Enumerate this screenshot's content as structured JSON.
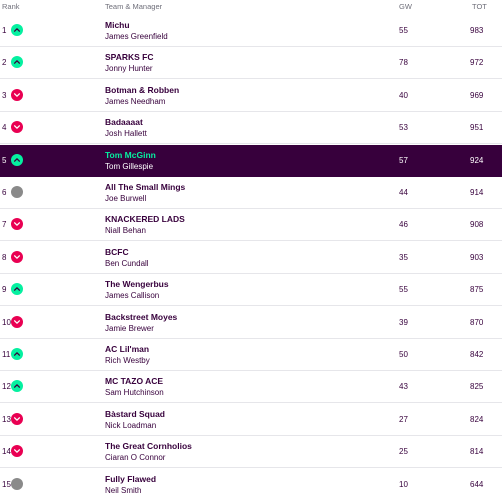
{
  "header": {
    "rank": "Rank",
    "team_manager": "Team & Manager",
    "gw": "GW",
    "tot": "TOT"
  },
  "colors": {
    "highlight_bg": "#37003c",
    "up": "#05f0a0",
    "down": "#e90052",
    "same": "#8a8a8a"
  },
  "rows": [
    {
      "rank": "1",
      "movement": "up",
      "team": "Michu",
      "manager": "James Greenfield",
      "gw": "55",
      "tot": "983"
    },
    {
      "rank": "2",
      "movement": "up",
      "team": "SPARKS FC",
      "manager": "Jonny Hunter",
      "gw": "78",
      "tot": "972"
    },
    {
      "rank": "3",
      "movement": "down",
      "team": "Botman & Robben",
      "manager": "James Needham",
      "gw": "40",
      "tot": "969"
    },
    {
      "rank": "4",
      "movement": "down",
      "team": "Badaaaat",
      "manager": "Josh Hallett",
      "gw": "53",
      "tot": "951"
    },
    {
      "rank": "5",
      "movement": "up",
      "team": "Tom McGinn",
      "manager": "Tom Gillespie",
      "gw": "57",
      "tot": "924",
      "highlight": true
    },
    {
      "rank": "6",
      "movement": "same",
      "team": "All The Small Mings",
      "manager": "Joe Burwell",
      "gw": "44",
      "tot": "914"
    },
    {
      "rank": "7",
      "movement": "down",
      "team": "KNACKERED LADS",
      "manager": "Niall Behan",
      "gw": "46",
      "tot": "908"
    },
    {
      "rank": "8",
      "movement": "down",
      "team": "BCFC",
      "manager": "Ben Cundall",
      "gw": "35",
      "tot": "903"
    },
    {
      "rank": "9",
      "movement": "up",
      "team": "The Wengerbus",
      "manager": "James Callison",
      "gw": "55",
      "tot": "875"
    },
    {
      "rank": "10",
      "movement": "down",
      "team": "Backstreet Moyes",
      "manager": "Jamie Brewer",
      "gw": "39",
      "tot": "870"
    },
    {
      "rank": "11",
      "movement": "up",
      "team": "AC Lil'man",
      "manager": "Rich Westby",
      "gw": "50",
      "tot": "842"
    },
    {
      "rank": "12",
      "movement": "up",
      "team": "MC TAZO ACE",
      "manager": "Sam Hutchinson",
      "gw": "43",
      "tot": "825"
    },
    {
      "rank": "13",
      "movement": "down",
      "team": "Bàstard Squad",
      "manager": "Nick Loadman",
      "gw": "27",
      "tot": "824"
    },
    {
      "rank": "14",
      "movement": "down",
      "team": "The Great Cornholios",
      "manager": "Ciaran O Connor",
      "gw": "25",
      "tot": "814"
    },
    {
      "rank": "15",
      "movement": "same",
      "team": "Fully Flawed",
      "manager": "Neil Smith",
      "gw": "10",
      "tot": "644"
    }
  ]
}
